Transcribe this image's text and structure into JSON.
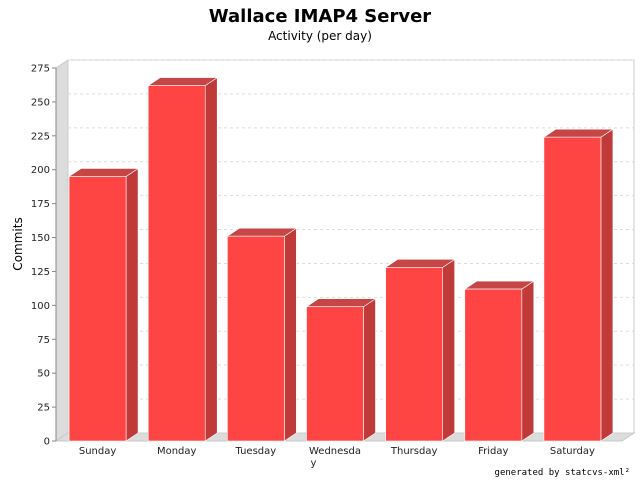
{
  "colors": {
    "bar_front": "#ff4444",
    "bar_top": "#c64545",
    "bar_side": "#c03a3a",
    "wall": "#dcdcdc",
    "grid": "#dddddd"
  },
  "credit": "generated by statcvs-xml²",
  "chart_data": {
    "type": "bar",
    "title": "Wallace IMAP4 Server",
    "subtitle": "Activity (per day)",
    "xlabel": "",
    "ylabel": "Commits",
    "categories": [
      "Sunday",
      "Monday",
      "Tuesday",
      "Wednesday",
      "Thursday",
      "Friday",
      "Saturday"
    ],
    "values": [
      195,
      262,
      151,
      99,
      128,
      112,
      224
    ],
    "ylim": [
      0,
      275
    ],
    "yticks": [
      0,
      25,
      50,
      75,
      100,
      125,
      150,
      175,
      200,
      225,
      250,
      275
    ],
    "grid": true,
    "three_d": true
  }
}
